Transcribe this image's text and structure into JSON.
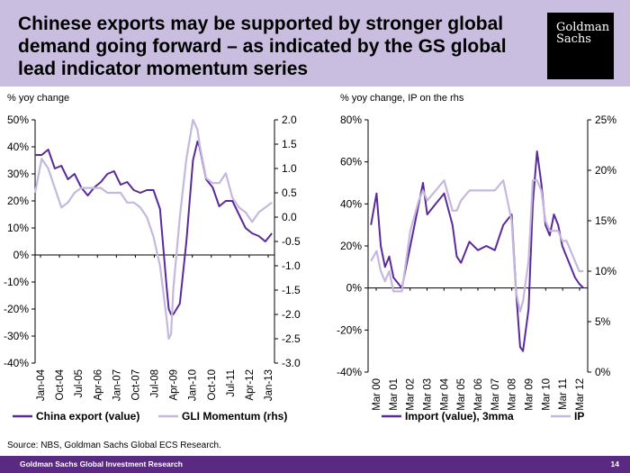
{
  "header": {
    "title": "Chinese exports may be supported by stronger global demand going forward – as indicated by the GS global lead indicator momentum series",
    "logo_line1": "Goldman",
    "logo_line2": "Sachs"
  },
  "source": "Source: NBS, Goldman Sachs Global ECS Research.",
  "footer": {
    "text": "Goldman Sachs Global Investment Research",
    "page": "14"
  },
  "colors": {
    "series1": "#5a2a9a",
    "series2": "#c4b8de",
    "header_bg": "#c9bedf",
    "footer_bg": "#5a2a82"
  },
  "chart_data": [
    {
      "type": "line",
      "ylabel": "% yoy change",
      "ylim": [
        -40,
        50
      ],
      "y2lim": [
        -3.0,
        2.0
      ],
      "yticks": [
        "50%",
        "40%",
        "30%",
        "20%",
        "10%",
        "0%",
        "-10%",
        "-20%",
        "-30%",
        "-40%"
      ],
      "y2ticks": [
        "2.0",
        "1.5",
        "1.0",
        "0.5",
        "0.0",
        "-0.5",
        "-1.0",
        "-1.5",
        "-2.0",
        "-2.5",
        "-3.0"
      ],
      "xticks": [
        "Jan-04",
        "Oct-04",
        "Jul-05",
        "Apr-06",
        "Jan-07",
        "Oct-07",
        "Jul-08",
        "Apr-09",
        "Jan-10",
        "Oct-10",
        "Jul-11",
        "Apr-12",
        "Jan-13"
      ],
      "x": [
        2004.0,
        2004.25,
        2004.5,
        2004.75,
        2005.0,
        2005.25,
        2005.5,
        2005.75,
        2006.0,
        2006.25,
        2006.5,
        2006.75,
        2007.0,
        2007.25,
        2007.5,
        2007.75,
        2008.0,
        2008.25,
        2008.5,
        2008.75,
        2009.0,
        2009.08,
        2009.17,
        2009.25,
        2009.5,
        2009.75,
        2010.0,
        2010.17,
        2010.25,
        2010.5,
        2010.75,
        2011.0,
        2011.25,
        2011.5,
        2011.75,
        2012.0,
        2012.25,
        2012.5,
        2012.75,
        2013.0
      ],
      "series": [
        {
          "name": "China export (value)",
          "axis": "left",
          "values": [
            37,
            37,
            39,
            32,
            33,
            28,
            30,
            25,
            22,
            25,
            27,
            30,
            31,
            26,
            27,
            24,
            23,
            24,
            24,
            17,
            -12,
            -20,
            -22,
            -22,
            -18,
            5,
            35,
            42,
            40,
            28,
            25,
            18,
            20,
            20,
            15,
            10,
            8,
            7,
            5,
            8
          ]
        },
        {
          "name": "GLI Momentum (rhs)",
          "axis": "right",
          "values": [
            0.5,
            1.2,
            1.0,
            0.6,
            0.2,
            0.3,
            0.5,
            0.6,
            0.6,
            0.6,
            0.6,
            0.5,
            0.5,
            0.5,
            0.3,
            0.3,
            0.2,
            0.0,
            -0.4,
            -1.0,
            -2.1,
            -2.5,
            -2.4,
            -1.5,
            0.0,
            1.2,
            2.0,
            1.8,
            1.5,
            0.8,
            0.7,
            0.7,
            0.9,
            0.4,
            0.2,
            0.1,
            -0.1,
            0.1,
            0.2,
            0.3
          ]
        }
      ]
    },
    {
      "type": "line",
      "ylabel": "% yoy change, IP on the rhs",
      "ylim": [
        -40,
        80
      ],
      "y2lim": [
        0,
        25
      ],
      "yticks": [
        "80%",
        "60%",
        "40%",
        "20%",
        "0%",
        "-20%",
        "-40%"
      ],
      "y2ticks": [
        "25%",
        "20%",
        "15%",
        "10%",
        "5%",
        "0%"
      ],
      "xticks": [
        "Mar 00",
        "Mar 01",
        "Mar 02",
        "Mar 03",
        "Mar 04",
        "Mar 05",
        "Mar 06",
        "Mar 07",
        "Mar 08",
        "Mar 09",
        "Mar 10",
        "Mar 11",
        "Mar 12"
      ],
      "x": [
        2000.17,
        2000.5,
        2000.75,
        2001.0,
        2001.25,
        2001.5,
        2002.0,
        2002.5,
        2003.0,
        2003.25,
        2003.5,
        2004.0,
        2004.5,
        2005.0,
        2005.25,
        2005.5,
        2006.0,
        2006.5,
        2007.0,
        2007.5,
        2008.0,
        2008.5,
        2008.75,
        2009.0,
        2009.17,
        2009.5,
        2009.75,
        2010.0,
        2010.25,
        2010.5,
        2010.75,
        2011.0,
        2011.25,
        2011.5,
        2011.75,
        2012.0,
        2012.25,
        2012.5,
        2012.75
      ],
      "series": [
        {
          "name": "Import (value), 3mma",
          "axis": "left",
          "values": [
            30,
            45,
            20,
            10,
            15,
            5,
            0,
            20,
            40,
            50,
            35,
            40,
            45,
            30,
            15,
            12,
            22,
            18,
            20,
            18,
            30,
            35,
            0,
            -28,
            -30,
            -10,
            40,
            65,
            50,
            30,
            25,
            35,
            30,
            20,
            15,
            10,
            5,
            2,
            0
          ]
        },
        {
          "name": "IP",
          "axis": "right",
          "values": [
            11,
            12,
            10,
            9,
            10,
            8,
            8,
            14,
            17,
            18,
            17,
            18,
            19,
            16,
            16,
            17,
            18,
            18,
            18,
            18,
            19,
            15,
            8,
            6,
            7,
            11,
            19,
            19,
            18,
            15,
            14,
            14,
            14,
            13,
            13,
            12,
            11,
            10,
            10
          ]
        }
      ]
    }
  ]
}
